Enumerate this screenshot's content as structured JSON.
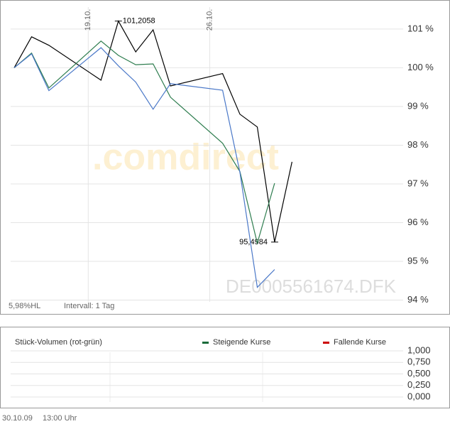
{
  "chart_data": [
    {
      "type": "line",
      "x": [
        14,
        15,
        16,
        19,
        20,
        21,
        22,
        23,
        26,
        27,
        28,
        29,
        30
      ],
      "xlim": [
        13.35,
        33.3
      ],
      "xticks": [
        {
          "value": 19,
          "label": "19.10."
        },
        {
          "value": 26,
          "label": "26.10."
        }
      ],
      "ylim": [
        93.9,
        101.75
      ],
      "yticks": [
        {
          "value": 101,
          "label": "101 %"
        },
        {
          "value": 100,
          "label": "100 %"
        },
        {
          "value": 99,
          "label": "99 %"
        },
        {
          "value": 98,
          "label": "98 %"
        },
        {
          "value": 97,
          "label": "97 %"
        },
        {
          "value": 96,
          "label": "96 %"
        },
        {
          "value": 95,
          "label": "95 %"
        },
        {
          "value": 94,
          "label": "94 %"
        }
      ],
      "grid": true,
      "series": [
        {
          "color": "#000000",
          "values": [
            100.0,
            100.8,
            100.58,
            99.68,
            101.2058,
            100.41,
            100.98,
            99.53,
            99.85,
            98.8,
            98.47,
            95.4984,
            97.57
          ],
          "value_labels": [
            null,
            null,
            null,
            null,
            "101,2058",
            null,
            null,
            null,
            null,
            null,
            null,
            "95,4984",
            null
          ]
        },
        {
          "color": "#2e7d4f",
          "values": [
            100.0,
            100.38,
            99.48,
            100.69,
            100.32,
            100.08,
            100.1,
            99.24,
            98.05,
            97.32,
            95.47,
            97.02,
            null
          ]
        },
        {
          "color": "#4a78c8",
          "values": [
            100.0,
            100.36,
            99.41,
            100.52,
            100.05,
            99.63,
            98.93,
            99.59,
            99.42,
            97.3,
            94.33,
            94.79,
            null
          ]
        }
      ],
      "watermark": ".comdirect",
      "symbol": "DE0005561674.DFK",
      "range_note": "5,98%HL",
      "interval": "Intervall: 1 Tag"
    },
    {
      "type": "bar",
      "title": "Stück-Volumen (rot-grün)",
      "ylim": [
        0,
        1
      ],
      "yticks": [
        {
          "value": 1,
          "label": "1,000"
        },
        {
          "value": 0.75,
          "label": "0,750"
        },
        {
          "value": 0.5,
          "label": "0,500"
        },
        {
          "value": 0.25,
          "label": "0,250"
        },
        {
          "value": 0,
          "label": "0,000"
        }
      ],
      "grid": true,
      "series": [
        {
          "name": "Steigende Kurse",
          "color": "#1a6b3a"
        },
        {
          "name": "Fallende Kurse",
          "color": "#cc0000"
        }
      ]
    }
  ],
  "footer": {
    "date": "30.10.09",
    "time": "13:00 Uhr"
  }
}
